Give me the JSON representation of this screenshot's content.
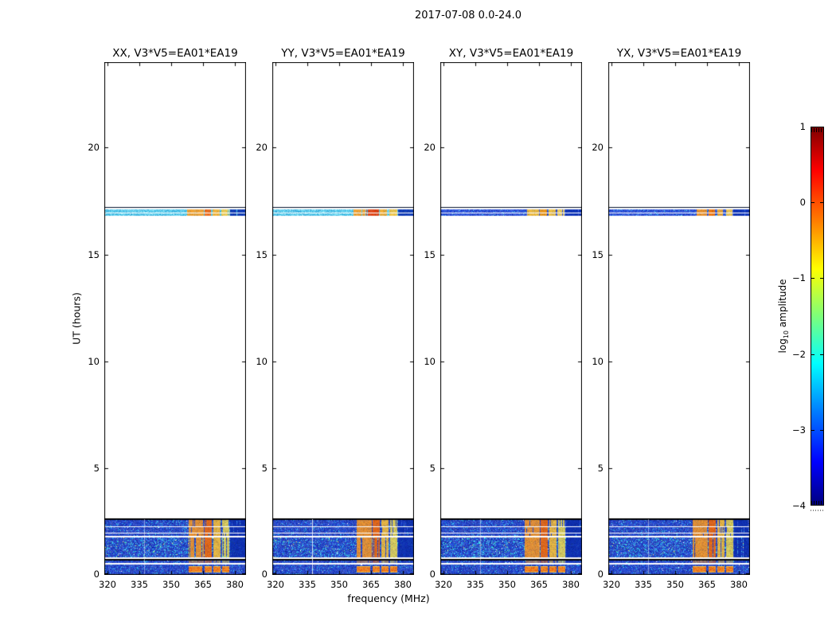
{
  "chart_data": {
    "type": "heatmap",
    "title": "2017-07-08 0.0-24.0",
    "xlabel": "frequency (MHz)",
    "ylabel": "UT (hours)",
    "colormap": "jet",
    "x_range_mhz": [
      318.5,
      385
    ],
    "y_range_hours": [
      0,
      24
    ],
    "x_ticks": [
      320,
      335,
      350,
      365,
      380
    ],
    "x_tick_labels": [
      "320",
      "335",
      "350",
      "365",
      "380"
    ],
    "y_ticks": [
      0,
      5,
      10,
      15,
      20
    ],
    "y_tick_labels": [
      "0",
      "5",
      "10",
      "15",
      "20"
    ],
    "panels": [
      {
        "id": "XX",
        "title": "XX, V3*V5=EA01*EA19",
        "event_base": "cyan",
        "event_stripes": [
          [
            357.5,
            365.2,
            "#ffa228"
          ],
          [
            365.8,
            368.7,
            "#ff6a10"
          ],
          [
            369.4,
            372.7,
            "#ffb430"
          ],
          [
            373.6,
            377.3,
            "#ffcf48"
          ],
          [
            377.6,
            385,
            "#0a2fb4"
          ]
        ]
      },
      {
        "id": "YY",
        "title": "YY, V3*V5=EA01*EA19",
        "event_base": "cyan",
        "event_stripes": [
          [
            356.8,
            362.2,
            "#ffa228"
          ],
          [
            362.6,
            368.6,
            "#f23800"
          ],
          [
            369.3,
            372.9,
            "#ffae2a"
          ],
          [
            373.7,
            377.5,
            "#ffc83e"
          ],
          [
            377.8,
            385,
            "#0a2fb4"
          ]
        ]
      },
      {
        "id": "XY",
        "title": "XY, V3*V5=EA01*EA19",
        "event_base": "deep",
        "event_stripes": [
          [
            359.2,
            364.9,
            "#ffc536"
          ],
          [
            365.5,
            368.7,
            "#ffa00a"
          ],
          [
            369.5,
            372.7,
            "#ffc93c"
          ],
          [
            373.7,
            377.1,
            "#ffd95c"
          ],
          [
            377.5,
            385,
            "#0c32b8"
          ]
        ]
      },
      {
        "id": "YX",
        "title": "YX, V3*V5=EA01*EA19",
        "event_base": "deep",
        "event_stripes": [
          [
            360.1,
            365.1,
            "#ff9c22"
          ],
          [
            365.7,
            368.9,
            "#ff7c06"
          ],
          [
            369.7,
            372.5,
            "#ffb02a"
          ],
          [
            373.9,
            377.1,
            "#ffd14c"
          ],
          [
            377.4,
            385,
            "#0c32b8"
          ]
        ]
      }
    ],
    "features": {
      "event_band": {
        "t_start": 16.82,
        "t_end": 17.09,
        "black_line_t": 17.2,
        "white_line_t": 16.97
      },
      "bottom_region": {
        "sub_bands_t": [
          [
            0.04,
            0.49
          ],
          [
            0.545,
            0.7
          ],
          [
            0.82,
            1.76
          ],
          [
            1.81,
            1.93
          ],
          [
            1.98,
            2.22
          ],
          [
            2.26,
            2.62
          ]
        ],
        "black_lines_t": [
          2.66,
          0.76
        ],
        "bright_noise_band_t": [
          0.82,
          1.76
        ],
        "dead_channel_mhz": 337.2,
        "stripes": [
          [
            358.4,
            365.3,
            "#ff9a20"
          ],
          [
            365.9,
            369.0,
            "#ff6c00"
          ],
          [
            369.7,
            373.1,
            "#ffc232"
          ],
          [
            374.0,
            377.5,
            "#f0dc50"
          ],
          [
            377.8,
            385,
            "#0b2cb0"
          ]
        ],
        "blob_clusters_mhz": [
          [
            358.4,
            364.6
          ],
          [
            365.6,
            369.2
          ],
          [
            370.0,
            373.2
          ],
          [
            373.9,
            377.3
          ]
        ],
        "blob_t": [
          0.1,
          0.42
        ]
      }
    },
    "colorbar": {
      "label_prefix": "log",
      "label_sub": "10",
      "label_suffix": " amplitude",
      "range": [
        -4,
        1
      ],
      "ticks": [
        1,
        0,
        -1,
        -2,
        -3,
        -4
      ],
      "tick_labels": [
        "1",
        "0",
        "−1",
        "−2",
        "−3",
        "−4"
      ],
      "gradient_stops_top_to_bottom": [
        [
          "#7f0000",
          0
        ],
        [
          "#ff0000",
          0.114
        ],
        [
          "#ff7f00",
          0.25
        ],
        [
          "#ffff00",
          0.375
        ],
        [
          "#7dff7a",
          0.5
        ],
        [
          "#00ffff",
          0.625
        ],
        [
          "#007fff",
          0.75
        ],
        [
          "#0000ff",
          0.886
        ],
        [
          "#00007f",
          1
        ]
      ]
    }
  }
}
